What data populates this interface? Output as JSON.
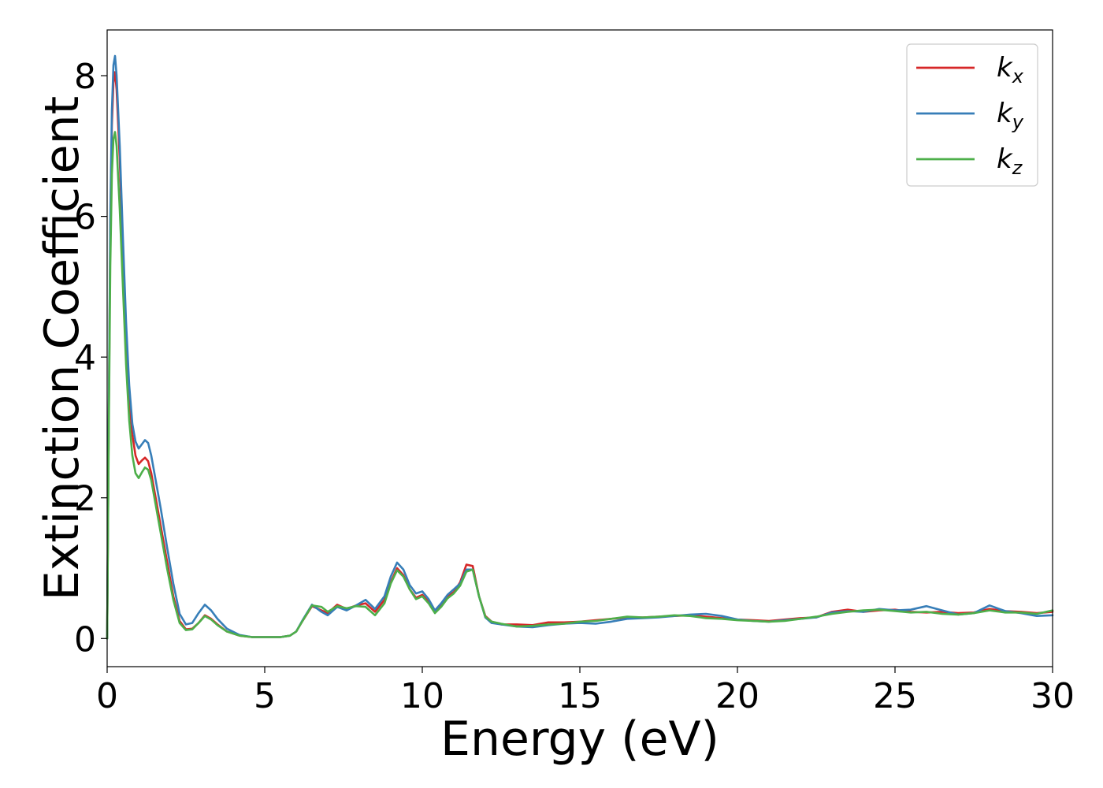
{
  "chart_data": {
    "type": "line",
    "xlabel": "Energy (eV)",
    "ylabel": "Extinction Coefficient",
    "xlim": [
      0,
      30
    ],
    "ylim": [
      -0.4,
      8.65
    ],
    "xticks": [
      0,
      5,
      10,
      15,
      20,
      25,
      30
    ],
    "yticks": [
      0,
      2,
      4,
      6,
      8
    ],
    "grid": false,
    "legend_position": "top-right",
    "series": [
      {
        "name": "k",
        "subscript": "x",
        "color": "#d62728",
        "x": [
          0,
          0.05,
          0.1,
          0.15,
          0.2,
          0.25,
          0.3,
          0.4,
          0.5,
          0.6,
          0.7,
          0.8,
          0.9,
          1.0,
          1.1,
          1.2,
          1.3,
          1.4,
          1.5,
          1.7,
          1.9,
          2.1,
          2.3,
          2.5,
          2.7,
          2.9,
          3.1,
          3.3,
          3.5,
          3.8,
          4.2,
          4.6,
          5.0,
          5.5,
          5.8,
          6.0,
          6.2,
          6.5,
          6.8,
          7.0,
          7.3,
          7.6,
          7.9,
          8.2,
          8.5,
          8.8,
          9.0,
          9.2,
          9.4,
          9.6,
          9.8,
          10.0,
          10.2,
          10.4,
          10.6,
          10.8,
          11.0,
          11.2,
          11.4,
          11.6,
          11.8,
          12.0,
          12.2,
          12.5,
          13.0,
          13.5,
          14.0,
          14.5,
          15.0,
          15.5,
          16.0,
          16.5,
          17.0,
          17.5,
          18.0,
          18.5,
          19.0,
          19.5,
          20.0,
          20.5,
          21.0,
          21.5,
          22.0,
          22.5,
          23.0,
          23.5,
          24.0,
          24.5,
          25.0,
          25.5,
          26.0,
          26.5,
          27.0,
          27.5,
          28.0,
          28.5,
          29.0,
          29.5,
          30.0
        ],
        "y": [
          0.0,
          3.0,
          5.8,
          7.3,
          7.9,
          8.05,
          7.8,
          6.8,
          5.5,
          4.3,
          3.4,
          2.9,
          2.6,
          2.48,
          2.53,
          2.57,
          2.52,
          2.35,
          2.1,
          1.6,
          1.1,
          0.6,
          0.25,
          0.13,
          0.14,
          0.22,
          0.33,
          0.28,
          0.2,
          0.1,
          0.04,
          0.02,
          0.02,
          0.02,
          0.04,
          0.1,
          0.25,
          0.46,
          0.4,
          0.36,
          0.48,
          0.42,
          0.47,
          0.5,
          0.38,
          0.55,
          0.8,
          1.0,
          0.9,
          0.7,
          0.58,
          0.62,
          0.52,
          0.38,
          0.48,
          0.6,
          0.66,
          0.8,
          1.05,
          1.03,
          0.6,
          0.32,
          0.24,
          0.2,
          0.2,
          0.19,
          0.23,
          0.23,
          0.24,
          0.26,
          0.28,
          0.3,
          0.3,
          0.31,
          0.32,
          0.33,
          0.31,
          0.29,
          0.27,
          0.26,
          0.25,
          0.27,
          0.29,
          0.3,
          0.38,
          0.41,
          0.38,
          0.4,
          0.41,
          0.38,
          0.37,
          0.38,
          0.36,
          0.37,
          0.42,
          0.39,
          0.38,
          0.36,
          0.38
        ]
      },
      {
        "name": "k",
        "subscript": "y",
        "color": "#377eb8",
        "x": [
          0,
          0.05,
          0.1,
          0.15,
          0.2,
          0.25,
          0.3,
          0.4,
          0.5,
          0.6,
          0.7,
          0.8,
          0.9,
          1.0,
          1.1,
          1.2,
          1.3,
          1.4,
          1.5,
          1.7,
          1.9,
          2.1,
          2.3,
          2.5,
          2.7,
          2.9,
          3.1,
          3.3,
          3.5,
          3.8,
          4.2,
          4.6,
          5.0,
          5.5,
          5.8,
          6.0,
          6.2,
          6.5,
          6.8,
          7.0,
          7.3,
          7.6,
          7.9,
          8.2,
          8.5,
          8.8,
          9.0,
          9.2,
          9.4,
          9.6,
          9.8,
          10.0,
          10.2,
          10.4,
          10.6,
          10.8,
          11.0,
          11.2,
          11.4,
          11.6,
          11.8,
          12.0,
          12.2,
          12.5,
          13.0,
          13.5,
          14.0,
          14.5,
          15.0,
          15.5,
          16.0,
          16.5,
          17.0,
          17.5,
          18.0,
          18.5,
          19.0,
          19.5,
          20.0,
          20.5,
          21.0,
          21.5,
          22.0,
          22.5,
          23.0,
          23.5,
          24.0,
          24.5,
          25.0,
          25.5,
          26.0,
          26.5,
          27.0,
          27.5,
          28.0,
          28.5,
          29.0,
          29.5,
          30.0
        ],
        "y": [
          0.0,
          3.1,
          6.0,
          7.5,
          8.15,
          8.28,
          8.0,
          7.0,
          5.7,
          4.5,
          3.6,
          3.05,
          2.8,
          2.7,
          2.76,
          2.82,
          2.78,
          2.6,
          2.35,
          1.85,
          1.3,
          0.78,
          0.35,
          0.2,
          0.22,
          0.36,
          0.48,
          0.4,
          0.28,
          0.14,
          0.05,
          0.02,
          0.02,
          0.02,
          0.04,
          0.1,
          0.26,
          0.48,
          0.38,
          0.33,
          0.45,
          0.4,
          0.47,
          0.55,
          0.42,
          0.6,
          0.88,
          1.08,
          0.98,
          0.76,
          0.64,
          0.67,
          0.56,
          0.4,
          0.5,
          0.62,
          0.7,
          0.78,
          0.98,
          0.98,
          0.6,
          0.3,
          0.22,
          0.2,
          0.17,
          0.16,
          0.19,
          0.21,
          0.22,
          0.21,
          0.24,
          0.28,
          0.29,
          0.3,
          0.32,
          0.34,
          0.35,
          0.32,
          0.27,
          0.25,
          0.24,
          0.26,
          0.28,
          0.3,
          0.37,
          0.39,
          0.38,
          0.42,
          0.4,
          0.41,
          0.46,
          0.4,
          0.34,
          0.36,
          0.47,
          0.39,
          0.36,
          0.32,
          0.33
        ]
      },
      {
        "name": "k",
        "subscript": "z",
        "color": "#4daf4a",
        "x": [
          0,
          0.05,
          0.1,
          0.15,
          0.2,
          0.25,
          0.3,
          0.4,
          0.5,
          0.6,
          0.7,
          0.8,
          0.9,
          1.0,
          1.1,
          1.2,
          1.3,
          1.4,
          1.5,
          1.7,
          1.9,
          2.1,
          2.3,
          2.5,
          2.7,
          2.9,
          3.1,
          3.3,
          3.5,
          3.8,
          4.2,
          4.6,
          5.0,
          5.5,
          5.8,
          6.0,
          6.2,
          6.5,
          6.8,
          7.0,
          7.3,
          7.6,
          7.9,
          8.2,
          8.5,
          8.8,
          9.0,
          9.2,
          9.4,
          9.6,
          9.8,
          10.0,
          10.2,
          10.4,
          10.6,
          10.8,
          11.0,
          11.2,
          11.4,
          11.6,
          11.8,
          12.0,
          12.2,
          12.5,
          13.0,
          13.5,
          14.0,
          14.5,
          15.0,
          15.5,
          16.0,
          16.5,
          17.0,
          17.5,
          18.0,
          18.5,
          19.0,
          19.5,
          20.0,
          20.5,
          21.0,
          21.5,
          22.0,
          22.5,
          23.0,
          23.5,
          24.0,
          24.5,
          25.0,
          25.5,
          26.0,
          26.5,
          27.0,
          27.5,
          28.0,
          28.5,
          29.0,
          29.5,
          30.0
        ],
        "y": [
          0.0,
          2.8,
          5.3,
          6.6,
          7.1,
          7.2,
          7.0,
          6.1,
          5.0,
          3.9,
          3.1,
          2.6,
          2.35,
          2.28,
          2.36,
          2.43,
          2.4,
          2.25,
          2.0,
          1.5,
          1.0,
          0.55,
          0.22,
          0.12,
          0.13,
          0.22,
          0.32,
          0.27,
          0.19,
          0.1,
          0.04,
          0.02,
          0.02,
          0.02,
          0.04,
          0.1,
          0.25,
          0.47,
          0.45,
          0.38,
          0.46,
          0.43,
          0.46,
          0.45,
          0.33,
          0.5,
          0.78,
          0.97,
          0.88,
          0.7,
          0.56,
          0.6,
          0.5,
          0.36,
          0.45,
          0.57,
          0.64,
          0.75,
          0.95,
          0.98,
          0.6,
          0.31,
          0.24,
          0.21,
          0.17,
          0.18,
          0.2,
          0.21,
          0.24,
          0.25,
          0.28,
          0.31,
          0.3,
          0.31,
          0.33,
          0.32,
          0.29,
          0.28,
          0.26,
          0.25,
          0.24,
          0.25,
          0.28,
          0.31,
          0.35,
          0.38,
          0.4,
          0.41,
          0.39,
          0.37,
          0.38,
          0.35,
          0.34,
          0.36,
          0.4,
          0.37,
          0.37,
          0.35,
          0.4
        ]
      }
    ]
  }
}
